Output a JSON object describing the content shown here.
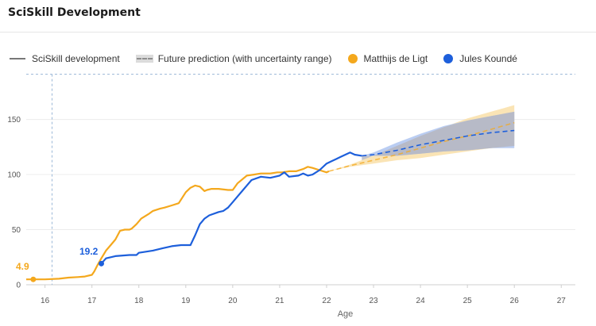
{
  "title": "SciSkill Development",
  "legend": {
    "development": "SciSkill development",
    "prediction": "Future prediction (with uncertainty range)",
    "player1": "Matthijs de Ligt",
    "player2": "Jules Koundé"
  },
  "colors": {
    "player1": "#f4a81d",
    "player2": "#1d5fdb",
    "band_player1": "#f9dfa8",
    "band_player2": "#a9c1ef",
    "band_overlap": "#b6b7c2",
    "grid": "#ececec",
    "reference": "#9bb8d8"
  },
  "chart_data": {
    "type": "line",
    "title": "",
    "xlabel": "Age",
    "ylabel": "",
    "xlim": [
      15.6,
      27.3
    ],
    "ylim": [
      0,
      190
    ],
    "x_ticks": [
      16,
      17,
      18,
      19,
      20,
      21,
      22,
      23,
      24,
      25,
      26,
      27
    ],
    "y_ticks": [
      0,
      50,
      100,
      150
    ],
    "grid": true,
    "legend_position": "top-left",
    "reference_lines": {
      "vertical_x": 16.15,
      "horizontal_y": 191
    },
    "start_labels": [
      {
        "series": "Matthijs de Ligt",
        "text": "4.9",
        "x": 15.75,
        "y": 4.9
      },
      {
        "series": "Jules Koundé",
        "text": "19.2",
        "x": 17.2,
        "y": 19.2
      }
    ],
    "series": [
      {
        "name": "Matthijs de Ligt",
        "x": [
          15.6,
          15.75,
          16.0,
          16.3,
          16.5,
          16.7,
          16.85,
          17.0,
          17.05,
          17.12,
          17.2,
          17.3,
          17.4,
          17.5,
          17.6,
          17.7,
          17.8,
          17.85,
          17.95,
          18.05,
          18.2,
          18.3,
          18.45,
          18.55,
          18.7,
          18.85,
          19.0,
          19.1,
          19.2,
          19.3,
          19.4,
          19.45,
          19.55,
          19.7,
          19.9,
          20.0,
          20.1,
          20.3,
          20.45,
          20.6,
          20.8,
          20.95,
          21.05,
          21.2,
          21.35,
          21.5,
          21.6,
          21.7,
          21.85,
          22.0,
          22.05
        ],
        "y": [
          4.9,
          4.9,
          4.9,
          5.5,
          6.5,
          7,
          7.5,
          9,
          12,
          18,
          24,
          31,
          36,
          41,
          49,
          50,
          50,
          51,
          55,
          60,
          64,
          67,
          69,
          70,
          72,
          74,
          84,
          88,
          90,
          89,
          85,
          86,
          87,
          87,
          86,
          86,
          92,
          99,
          100,
          101,
          101,
          102,
          102,
          103,
          103,
          105,
          107,
          106,
          104,
          102,
          103
        ]
      },
      {
        "name": "Jules Koundé",
        "x": [
          17.2,
          17.3,
          17.5,
          17.8,
          17.95,
          18.0,
          18.3,
          18.5,
          18.7,
          18.9,
          19.1,
          19.2,
          19.3,
          19.4,
          19.5,
          19.7,
          19.8,
          19.9,
          20.0,
          20.1,
          20.2,
          20.3,
          20.4,
          20.6,
          20.8,
          21.0,
          21.1,
          21.2,
          21.4,
          21.5,
          21.6,
          21.7,
          21.85,
          22.0,
          22.1,
          22.2,
          22.3,
          22.4,
          22.5,
          22.6,
          22.75
        ],
        "y": [
          19.2,
          24,
          26,
          27,
          27,
          29,
          31,
          33,
          35,
          36,
          36,
          45,
          55,
          60,
          63,
          66,
          67,
          70,
          75,
          80,
          85,
          90,
          95,
          98,
          97,
          99,
          102,
          98,
          99,
          101,
          99,
          100,
          104,
          110,
          112,
          114,
          116,
          118,
          120,
          118,
          117
        ]
      }
    ],
    "predictions": [
      {
        "series": "Matthijs de Ligt",
        "x": [
          22.05,
          22.5,
          23.0,
          23.5,
          24.0,
          24.5,
          25.0,
          25.5,
          26.0
        ],
        "y": [
          103,
          108,
          113,
          118,
          124,
          130,
          135,
          141,
          147
        ],
        "lower": [
          103,
          107,
          110,
          113,
          115,
          118,
          121,
          124,
          126
        ],
        "upper": [
          103,
          109,
          117,
          126,
          135,
          143,
          151,
          157,
          163
        ]
      },
      {
        "series": "Jules Koundé",
        "x": [
          22.75,
          23.0,
          23.5,
          24.0,
          24.5,
          25.0,
          25.5,
          26.0
        ],
        "y": [
          117,
          118,
          122,
          127,
          131,
          135,
          138,
          140
        ],
        "lower": [
          117,
          117,
          117,
          119,
          121,
          122,
          124,
          124
        ],
        "upper": [
          117,
          120,
          129,
          137,
          144,
          149,
          153,
          157
        ]
      }
    ]
  }
}
